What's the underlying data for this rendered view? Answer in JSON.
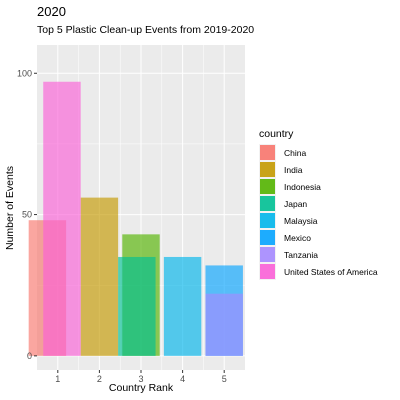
{
  "chart_data": {
    "type": "bar",
    "title": "2020",
    "subtitle": "Top 5 Plastic Clean-up Events from 2019-2020",
    "xlabel": "Country Rank",
    "ylabel": "Number of Events",
    "x_ticks": [
      "1",
      "2",
      "3",
      "4",
      "5"
    ],
    "y_ticks": [
      "0",
      "50",
      "100"
    ],
    "ylim": [
      -5,
      110
    ],
    "xlim": [
      0.5,
      5.5
    ],
    "grid": true,
    "legend_position": "right",
    "legend_title": "country",
    "series": [
      {
        "name": "China",
        "color": "#F8766D",
        "x": [
          1
        ],
        "values": [
          48
        ]
      },
      {
        "name": "India",
        "color": "#C49A00",
        "x": [
          2
        ],
        "values": [
          56
        ]
      },
      {
        "name": "Indonesia",
        "color": "#53B400",
        "x": [
          3
        ],
        "values": [
          43
        ]
      },
      {
        "name": "Japan",
        "color": "#00C094",
        "x": [
          3
        ],
        "values": [
          35
        ]
      },
      {
        "name": "Malaysia",
        "color": "#00B6EB",
        "x": [
          4
        ],
        "values": [
          35
        ]
      },
      {
        "name": "Mexico",
        "color": "#06A4FF",
        "x": [
          5
        ],
        "values": [
          32
        ]
      },
      {
        "name": "Tanzania",
        "color": "#A58AFF",
        "x": [
          5
        ],
        "values": [
          22
        ]
      },
      {
        "name": "United States of America",
        "color": "#FB61D7",
        "x": [
          1
        ],
        "values": [
          97
        ]
      }
    ]
  }
}
